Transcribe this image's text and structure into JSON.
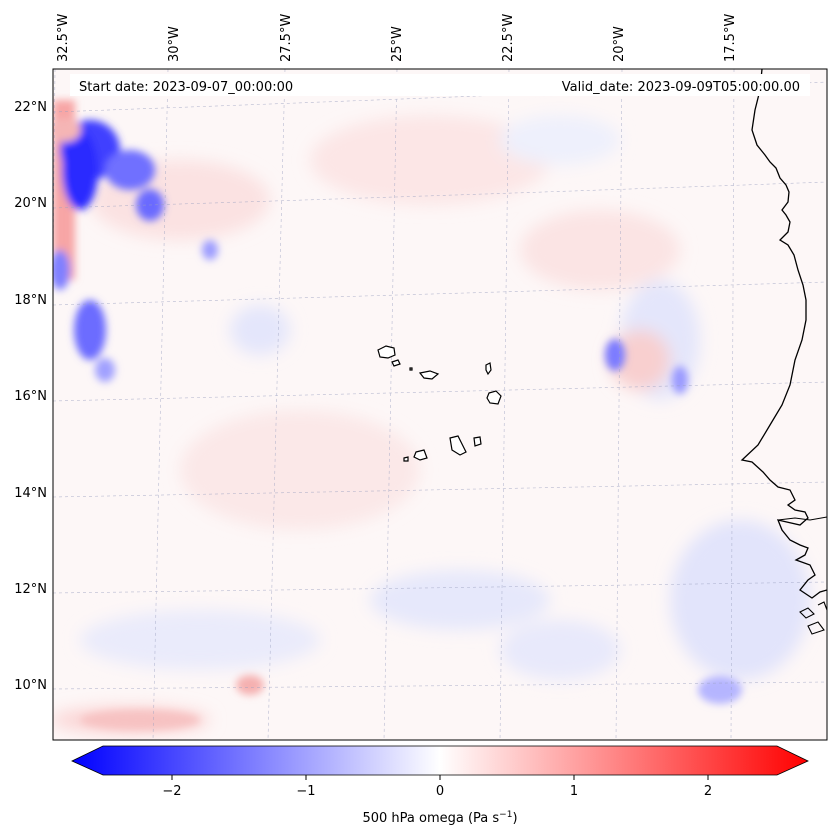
{
  "header": {
    "start_date": "Start date: 2023-09-07_00:00:00",
    "valid_date": "Valid_date: 2023-09-09T05:00:00.00"
  },
  "longitude_labels": [
    "32.5°W",
    "30°W",
    "27.5°W",
    "25°W",
    "22.5°W",
    "20°W",
    "17.5°W"
  ],
  "latitude_labels": [
    "22°N",
    "20°N",
    "18°N",
    "16°N",
    "14°N",
    "12°N",
    "10°N"
  ],
  "colorbar": {
    "ticks": [
      "−2",
      "−1",
      "0",
      "1",
      "2"
    ],
    "label": "500 hPa omega (Pa s",
    "label_sup": "−1",
    "label_end": ")",
    "range": [
      -2.7,
      2.7
    ],
    "colors": {
      "min": "#0000ff",
      "mid": "#ffffff",
      "max": "#ff0000"
    }
  },
  "map": {
    "coastline_color": "#000000",
    "grid_style": "dashed"
  }
}
